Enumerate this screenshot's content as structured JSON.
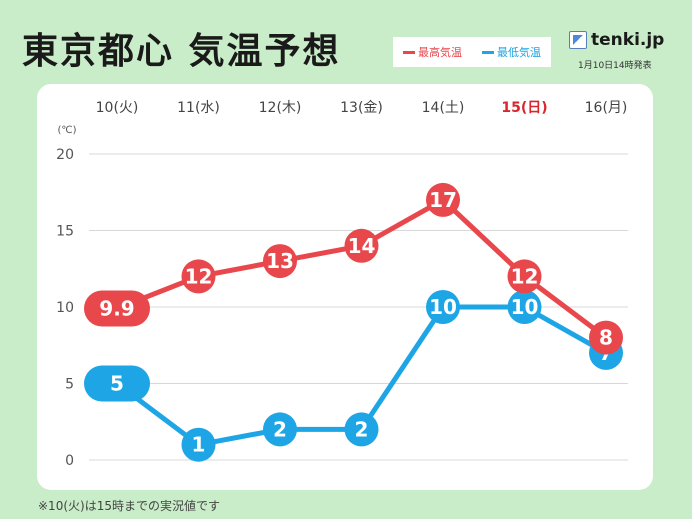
{
  "header": {
    "title": "東京都心 気温予想",
    "brand": "tenki.jp",
    "issued": "1月10日14時発表"
  },
  "footnote": "※10(火)は15時までの実況値です",
  "colors": {
    "background": "#c9ecc9",
    "panel": "#ffffff",
    "high": "#e8474c",
    "low": "#1ea5e6",
    "sunday": "#d9262e",
    "grid": "#d8d8d8"
  },
  "chart_data": {
    "type": "line",
    "title": "東京都心 気温予想",
    "ylabel": "(℃)",
    "categories": [
      "10(火)",
      "11(水)",
      "12(木)",
      "13(金)",
      "14(土)",
      "15(日)",
      "16(月)"
    ],
    "highlight_category": "15(日)",
    "yticks": [
      0,
      5,
      10,
      15,
      20
    ],
    "ylim": [
      0,
      20
    ],
    "grid": true,
    "legend_position": "top",
    "series": [
      {
        "name": "最高気温",
        "key": "high",
        "values": [
          9.9,
          12,
          13,
          14,
          17,
          12,
          8
        ]
      },
      {
        "name": "最低気温",
        "key": "low",
        "values": [
          5,
          1,
          2,
          2,
          10,
          10,
          7
        ]
      }
    ]
  }
}
